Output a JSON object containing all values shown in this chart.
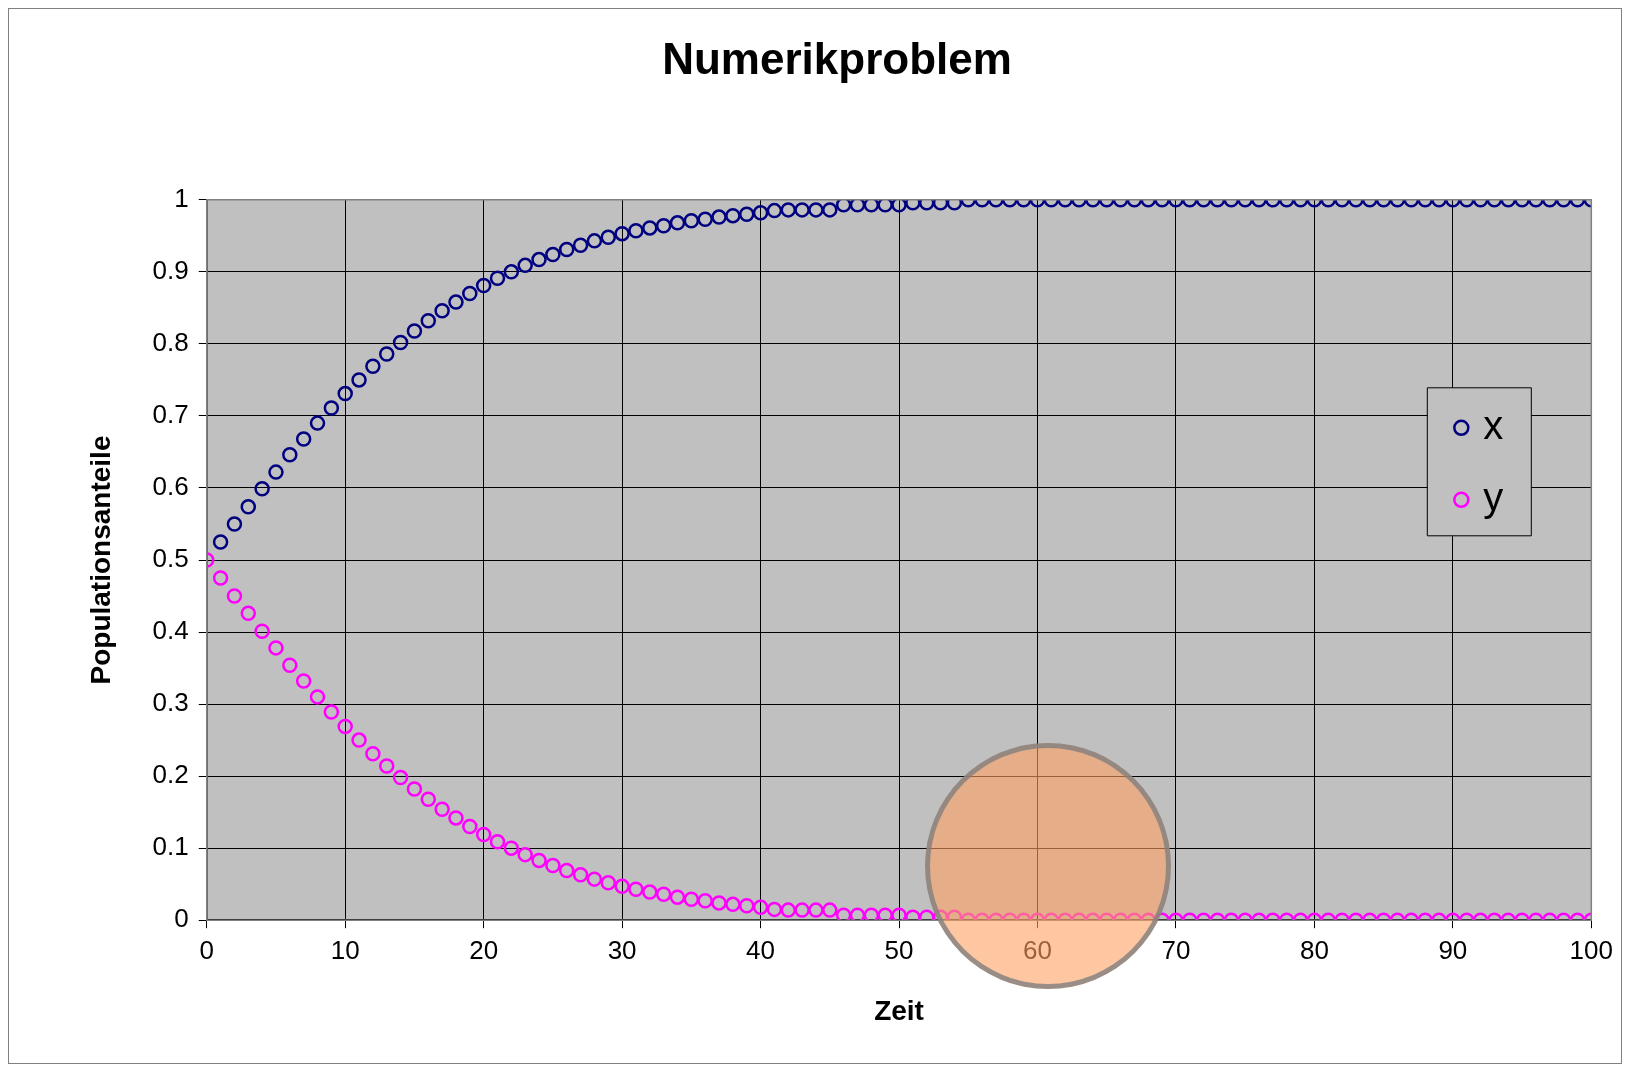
{
  "chart_data": {
    "type": "scatter",
    "title": "Numerikproblem",
    "xlabel": "Zeit",
    "ylabel": "Populationsanteile",
    "x": [
      0,
      1,
      2,
      3,
      4,
      5,
      6,
      7,
      8,
      9,
      10,
      11,
      12,
      13,
      14,
      15,
      16,
      17,
      18,
      19,
      20,
      21,
      22,
      23,
      24,
      25,
      26,
      27,
      28,
      29,
      30,
      31,
      32,
      33,
      34,
      35,
      36,
      37,
      38,
      39,
      40,
      41,
      42,
      43,
      44,
      45,
      46,
      47,
      48,
      49,
      50,
      51,
      52,
      53,
      54,
      55,
      56,
      57,
      58,
      59,
      60,
      61,
      62,
      63,
      64,
      65,
      66,
      67,
      68,
      69,
      70,
      71,
      72,
      73,
      74,
      75,
      76,
      77,
      78,
      79,
      80,
      81,
      82,
      83,
      84,
      85,
      86,
      87,
      88,
      89,
      90,
      91,
      92,
      93,
      94,
      95,
      96,
      97,
      98,
      99,
      100
    ],
    "series": [
      {
        "name": "x",
        "color": "#000080",
        "values": [
          null,
          0.525,
          0.55,
          0.574,
          0.599,
          0.622,
          0.646,
          0.668,
          0.69,
          0.711,
          0.731,
          0.75,
          0.769,
          0.786,
          0.802,
          0.818,
          0.832,
          0.846,
          0.858,
          0.87,
          0.881,
          0.891,
          0.9,
          0.909,
          0.917,
          0.924,
          0.931,
          0.937,
          0.943,
          0.948,
          0.953,
          0.957,
          0.961,
          0.964,
          0.968,
          0.971,
          0.973,
          0.976,
          0.978,
          0.98,
          0.982,
          0.985,
          0.986,
          0.986,
          0.986,
          0.986,
          0.993,
          0.993,
          0.993,
          0.993,
          0.993,
          0.996,
          0.996,
          0.996,
          0.996,
          1,
          1,
          1,
          1,
          1,
          1,
          1,
          1,
          1,
          1,
          1,
          1,
          1,
          1,
          1,
          1,
          1,
          1,
          1,
          1,
          1,
          1,
          1,
          1,
          1,
          1,
          1,
          1,
          1,
          1,
          1,
          1,
          1,
          1,
          1,
          1,
          1,
          1,
          1,
          1,
          1,
          1,
          1,
          1,
          1,
          1
        ]
      },
      {
        "name": "y",
        "color": "#ff00ff",
        "values": [
          0.5,
          0.475,
          0.45,
          0.426,
          0.401,
          0.378,
          0.354,
          0.332,
          0.31,
          0.289,
          0.269,
          0.25,
          0.231,
          0.214,
          0.198,
          0.182,
          0.168,
          0.154,
          0.142,
          0.13,
          0.119,
          0.109,
          0.1,
          0.091,
          0.083,
          0.076,
          0.069,
          0.063,
          0.057,
          0.052,
          0.047,
          0.043,
          0.039,
          0.036,
          0.032,
          0.029,
          0.027,
          0.024,
          0.022,
          0.02,
          0.018,
          0.015,
          0.014,
          0.014,
          0.014,
          0.014,
          0.007,
          0.007,
          0.007,
          0.007,
          0.007,
          0.004,
          0.004,
          0.004,
          0.004,
          0,
          0,
          0,
          0,
          0,
          0,
          0,
          0,
          0,
          0,
          0,
          0,
          0,
          0,
          0,
          0,
          0,
          0,
          0,
          0,
          0,
          0,
          0,
          0,
          0,
          0,
          0,
          0,
          0,
          0,
          0,
          0,
          0,
          0,
          0,
          0,
          0,
          0,
          0,
          0,
          0,
          0,
          0,
          0,
          0,
          0
        ]
      }
    ],
    "xlim": [
      0,
      100
    ],
    "xticks": [
      0,
      10,
      20,
      30,
      40,
      50,
      60,
      70,
      80,
      90,
      100
    ],
    "ylim": [
      0,
      1
    ],
    "yticks": [
      0,
      0.1,
      0.2,
      0.3,
      0.4,
      0.5,
      0.6,
      0.7,
      0.8,
      0.9,
      1
    ],
    "grid": true,
    "legend": "right",
    "marker": "circle"
  }
}
